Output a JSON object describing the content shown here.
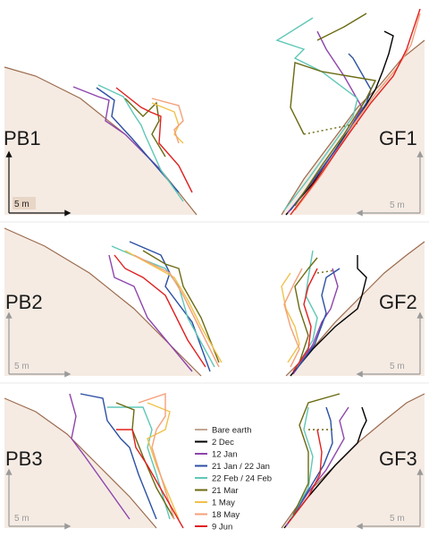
{
  "panels": [
    {
      "id": "PB1",
      "label": "PB1",
      "scale": "5 m"
    },
    {
      "id": "GF1",
      "label": "GF1",
      "scale": "5 m"
    },
    {
      "id": "PB2",
      "label": "PB2",
      "scale": "5 m"
    },
    {
      "id": "GF2",
      "label": "GF2",
      "scale": "5 m"
    },
    {
      "id": "PB3",
      "label": "PB3",
      "scale": "5 m"
    },
    {
      "id": "GF3",
      "label": "GF3",
      "scale": "5 m"
    }
  ],
  "legend": [
    {
      "label": "Bare earth",
      "color": "#9c6b4e"
    },
    {
      "label": "2 Dec",
      "color": "#000000"
    },
    {
      "label": "12 Jan",
      "color": "#8e44ad"
    },
    {
      "label": "21 Jan / 22 Jan",
      "color": "#2b4fa3"
    },
    {
      "label": "22 Feb / 24 Feb",
      "color": "#5fc7b6"
    },
    {
      "label": "21 Mar",
      "color": "#6b6a12"
    },
    {
      "label": "1 May",
      "color": "#f0c24a"
    },
    {
      "label": "18 May",
      "color": "#f4a07a"
    },
    {
      "label": "9 Jun",
      "color": "#e0201f"
    }
  ],
  "colors": {
    "ground": "#f5ebe3",
    "bare_earth": "#9c6b4e"
  }
}
